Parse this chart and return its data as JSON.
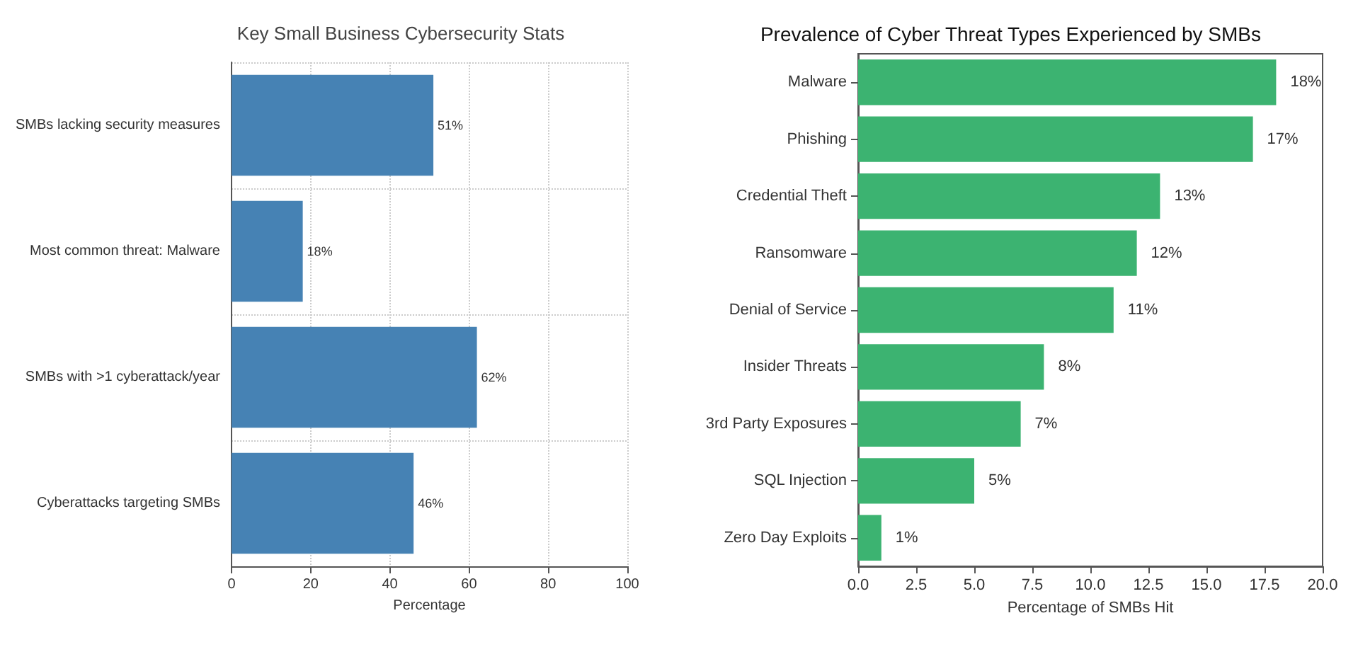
{
  "chart_data": [
    {
      "type": "bar",
      "orientation": "horizontal",
      "title": "Key Small Business Cybersecurity Stats",
      "xlabel": "Percentage",
      "categories": [
        "SMBs lacking security measures",
        "Most common threat: Malware",
        "SMBs with >1 cyberattack/year",
        "Cyberattacks targeting SMBs"
      ],
      "values": [
        51,
        18,
        62,
        46
      ],
      "value_labels": [
        "51%",
        "18%",
        "62%",
        "46%"
      ],
      "color": "#4682b4",
      "xlim": [
        0,
        100
      ],
      "xticks": [
        0,
        20,
        40,
        60,
        80,
        100
      ],
      "grid": true
    },
    {
      "type": "bar",
      "orientation": "horizontal",
      "title": "Prevalence of Cyber Threat Types Experienced by SMBs",
      "xlabel": "Percentage of SMBs Hit",
      "categories": [
        "Malware",
        "Phishing",
        "Credential Theft",
        "Ransomware",
        "Denial of Service",
        "Insider Threats",
        "3rd Party Exposures",
        "SQL Injection",
        "Zero Day Exploits"
      ],
      "values": [
        18,
        17,
        13,
        12,
        11,
        8,
        7,
        5,
        1
      ],
      "value_labels": [
        "18%",
        "17%",
        "13%",
        "12%",
        "11%",
        "8%",
        "7%",
        "5%",
        "1%"
      ],
      "color": "#3cb371",
      "xlim": [
        0,
        20
      ],
      "xticks": [
        {
          "value": 0,
          "label": "0.0"
        },
        2.5,
        {
          "value": 5,
          "label": "5.0"
        },
        7.5,
        {
          "value": 10,
          "label": "10.0"
        },
        12.5,
        {
          "value": 15,
          "label": "15.0"
        },
        17.5,
        {
          "value": 20,
          "label": "20.0"
        }
      ],
      "grid": false
    }
  ]
}
